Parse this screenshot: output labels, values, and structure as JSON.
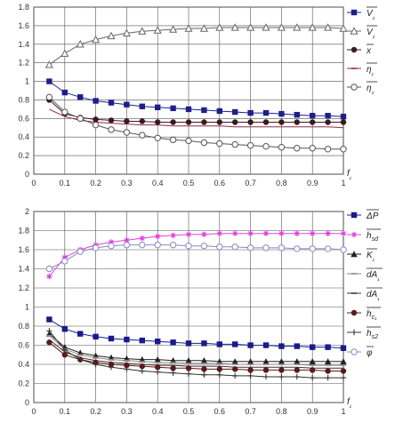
{
  "chart_data": [
    {
      "type": "line",
      "x": [
        0.05,
        0.1,
        0.15,
        0.2,
        0.25,
        0.3,
        0.35,
        0.4,
        0.45,
        0.5,
        0.55,
        0.6,
        0.65,
        0.7,
        0.75,
        0.8,
        0.85,
        0.9,
        0.95,
        1.0
      ],
      "xlim": [
        0,
        1
      ],
      "ylim": [
        0,
        1.8
      ],
      "x_ticks": [
        "0",
        "0.1",
        "0.2",
        "0.3",
        "0.4",
        "0.5",
        "0.6",
        "0.7",
        "0.8",
        "0.9",
        "1"
      ],
      "y_ticks": [
        "0",
        "0.2",
        "0.4",
        "0.6",
        "0.8",
        "1",
        "1.2",
        "1.4",
        "1.6",
        "1.8"
      ],
      "xlabel": "f₁",
      "grid": true,
      "legend_position": "right",
      "series": [
        {
          "name": "V₂",
          "color": "#1f1f8c",
          "marker": "square-filled",
          "values": [
            1.0,
            0.88,
            0.83,
            0.79,
            0.77,
            0.75,
            0.73,
            0.72,
            0.71,
            0.7,
            0.69,
            0.68,
            0.67,
            0.66,
            0.66,
            0.65,
            0.64,
            0.63,
            0.63,
            0.62
          ]
        },
        {
          "name": "V₂",
          "color": "#666666",
          "marker": "triangle-open",
          "values": [
            1.18,
            1.3,
            1.4,
            1.45,
            1.49,
            1.52,
            1.54,
            1.55,
            1.56,
            1.57,
            1.57,
            1.58,
            1.58,
            1.58,
            1.58,
            1.58,
            1.58,
            1.58,
            1.58,
            1.57
          ]
        },
        {
          "name": "x",
          "color": "#3a1a1a",
          "marker": "circle-filled",
          "values": [
            0.8,
            0.65,
            0.61,
            0.59,
            0.58,
            0.57,
            0.57,
            0.56,
            0.56,
            0.56,
            0.56,
            0.56,
            0.56,
            0.56,
            0.56,
            0.56,
            0.56,
            0.56,
            0.56,
            0.56
          ]
        },
        {
          "name": "η₁",
          "color": "#8b2a4a",
          "marker": "none",
          "values": [
            0.7,
            0.62,
            0.58,
            0.56,
            0.55,
            0.54,
            0.53,
            0.53,
            0.52,
            0.52,
            0.52,
            0.52,
            0.51,
            0.51,
            0.51,
            0.51,
            0.51,
            0.51,
            0.51,
            0.5
          ]
        },
        {
          "name": "η₂",
          "color": "#555555",
          "marker": "circle-open",
          "values": [
            0.83,
            0.67,
            0.6,
            0.53,
            0.48,
            0.45,
            0.42,
            0.39,
            0.37,
            0.36,
            0.34,
            0.33,
            0.32,
            0.31,
            0.3,
            0.29,
            0.28,
            0.28,
            0.27,
            0.27
          ]
        }
      ]
    },
    {
      "type": "line",
      "x": [
        0.05,
        0.1,
        0.15,
        0.2,
        0.25,
        0.3,
        0.35,
        0.4,
        0.45,
        0.5,
        0.55,
        0.6,
        0.65,
        0.7,
        0.75,
        0.8,
        0.85,
        0.9,
        0.95,
        1.0
      ],
      "xlim": [
        0,
        1
      ],
      "ylim": [
        0,
        2
      ],
      "x_ticks": [
        "0",
        "0.1",
        "0.2",
        "0.3",
        "0.4",
        "0.5",
        "0.6",
        "0.7",
        "0.8",
        "0.9",
        "1"
      ],
      "y_ticks": [
        "0",
        "0.2",
        "0.4",
        "0.6",
        "0.8",
        "1",
        "1.2",
        "1.4",
        "1.6",
        "1.8",
        "2"
      ],
      "xlabel": "f₁",
      "grid": true,
      "legend_position": "right",
      "series": [
        {
          "name": "ΔP",
          "color": "#1a1a8c",
          "marker": "square-filled",
          "values": [
            0.87,
            0.77,
            0.72,
            0.69,
            0.67,
            0.66,
            0.65,
            0.64,
            0.63,
            0.62,
            0.62,
            0.61,
            0.61,
            0.6,
            0.6,
            0.59,
            0.59,
            0.58,
            0.58,
            0.57
          ]
        },
        {
          "name": "h_sd",
          "color": "#e040e0",
          "marker": "star",
          "values": [
            1.32,
            1.52,
            1.6,
            1.65,
            1.68,
            1.7,
            1.72,
            1.74,
            1.75,
            1.76,
            1.76,
            1.77,
            1.77,
            1.77,
            1.77,
            1.77,
            1.77,
            1.77,
            1.77,
            1.77
          ]
        },
        {
          "name": "K₁",
          "color": "#222222",
          "marker": "triangle-filled",
          "values": [
            0.72,
            0.58,
            0.52,
            0.49,
            0.47,
            0.46,
            0.45,
            0.45,
            0.44,
            0.44,
            0.44,
            0.43,
            0.43,
            0.43,
            0.43,
            0.43,
            0.43,
            0.43,
            0.43,
            0.43
          ]
        },
        {
          "name": "dA₁",
          "color": "#888888",
          "marker": "dash",
          "values": [
            0.7,
            0.56,
            0.5,
            0.47,
            0.45,
            0.44,
            0.43,
            0.42,
            0.42,
            0.41,
            0.41,
            0.41,
            0.4,
            0.4,
            0.4,
            0.4,
            0.4,
            0.39,
            0.39,
            0.39
          ]
        },
        {
          "name": "dA₁",
          "color": "#4a3030",
          "marker": "none",
          "values": [
            0.66,
            0.53,
            0.47,
            0.44,
            0.42,
            0.41,
            0.4,
            0.39,
            0.39,
            0.38,
            0.38,
            0.38,
            0.37,
            0.37,
            0.37,
            0.37,
            0.37,
            0.36,
            0.36,
            0.36
          ]
        },
        {
          "name": "h_c₁",
          "color": "#5a1a1a",
          "marker": "circle-filled",
          "values": [
            0.63,
            0.5,
            0.45,
            0.42,
            0.4,
            0.39,
            0.38,
            0.37,
            0.36,
            0.36,
            0.35,
            0.35,
            0.35,
            0.34,
            0.34,
            0.34,
            0.34,
            0.34,
            0.33,
            0.33
          ]
        },
        {
          "name": "h_s2",
          "color": "#333333",
          "marker": "plus",
          "values": [
            0.75,
            0.55,
            0.45,
            0.4,
            0.37,
            0.35,
            0.33,
            0.32,
            0.31,
            0.3,
            0.29,
            0.29,
            0.28,
            0.28,
            0.27,
            0.27,
            0.27,
            0.26,
            0.26,
            0.26
          ]
        },
        {
          "name": "φ",
          "color": "#8888cc",
          "marker": "circle-open",
          "values": [
            1.4,
            1.48,
            1.58,
            1.62,
            1.64,
            1.65,
            1.65,
            1.65,
            1.65,
            1.64,
            1.64,
            1.63,
            1.63,
            1.62,
            1.62,
            1.62,
            1.61,
            1.61,
            1.61,
            1.6
          ]
        }
      ]
    }
  ]
}
